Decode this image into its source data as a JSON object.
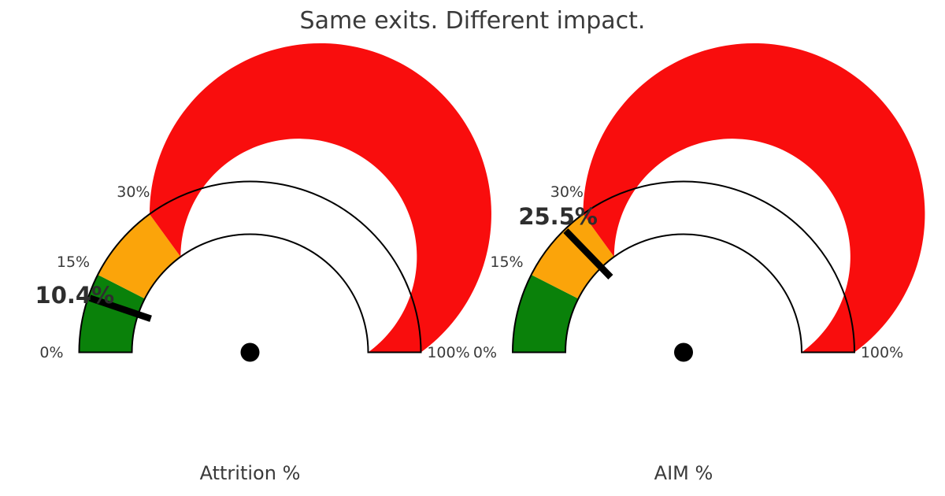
{
  "title": "Same exits. Different impact.",
  "colors": {
    "zone_green": "#0a810a",
    "zone_orange": "#fba40a",
    "zone_red": "#f90d0d",
    "outline": "#000000",
    "needle": "#000000",
    "pivot": "#000000",
    "text": "#3a3a3a",
    "value_text": "#2e2e2e",
    "background": "#ffffff"
  },
  "chart_data": [
    {
      "type": "gauge",
      "title": "Attrition %",
      "value": 10.4,
      "value_label": "10.4%",
      "range": [
        0,
        100
      ],
      "zones": [
        {
          "name": "green",
          "from": 0,
          "to": 15,
          "color": "#0a810a"
        },
        {
          "name": "orange",
          "from": 15,
          "to": 30,
          "color": "#fba40a"
        },
        {
          "name": "red",
          "from": 30,
          "to": 100,
          "color": "#f90d0d"
        }
      ],
      "ticks": [
        {
          "pct": 0,
          "label": "0%"
        },
        {
          "pct": 15,
          "label": "15%"
        },
        {
          "pct": 30,
          "label": "30%"
        },
        {
          "pct": 100,
          "label": "100%"
        }
      ]
    },
    {
      "type": "gauge",
      "title": "AIM %",
      "value": 25.5,
      "value_label": "25.5%",
      "range": [
        0,
        100
      ],
      "zones": [
        {
          "name": "green",
          "from": 0,
          "to": 15,
          "color": "#0a810a"
        },
        {
          "name": "orange",
          "from": 15,
          "to": 30,
          "color": "#fba40a"
        },
        {
          "name": "red",
          "from": 30,
          "to": 100,
          "color": "#f90d0d"
        }
      ],
      "ticks": [
        {
          "pct": 0,
          "label": "0%"
        },
        {
          "pct": 15,
          "label": "15%"
        },
        {
          "pct": 30,
          "label": "30%"
        },
        {
          "pct": 100,
          "label": "100%"
        }
      ]
    }
  ]
}
